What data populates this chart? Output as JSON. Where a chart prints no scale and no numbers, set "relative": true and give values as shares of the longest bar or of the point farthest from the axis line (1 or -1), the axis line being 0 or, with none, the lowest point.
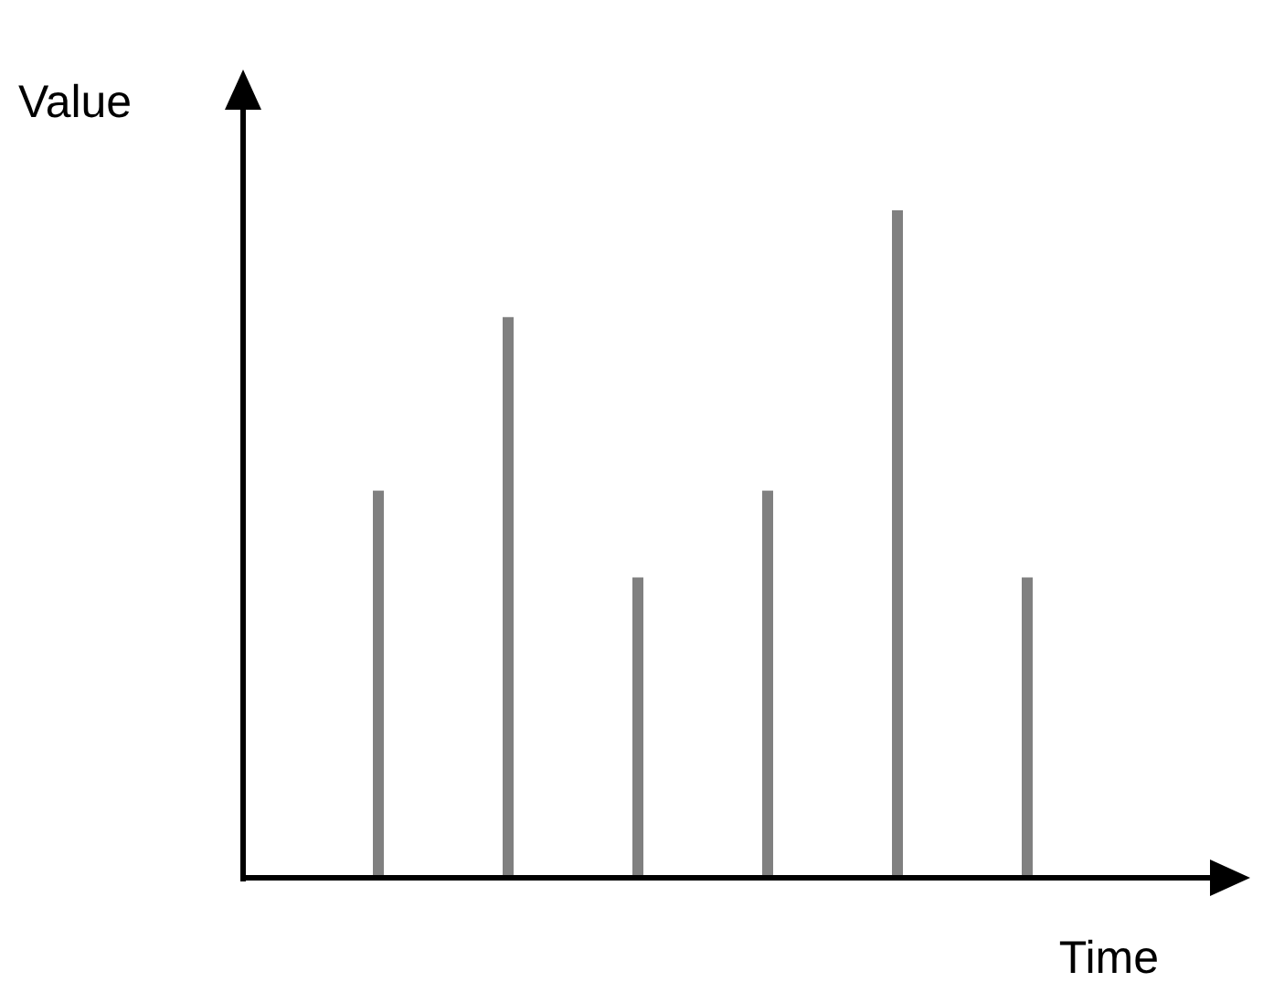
{
  "chart_data": {
    "type": "bar",
    "relative": true,
    "xlabel": "Time",
    "ylabel": "Value",
    "categories": [
      null,
      null,
      null,
      null,
      null,
      null
    ],
    "values": [
      0.58,
      0.84,
      0.45,
      0.58,
      1,
      0.45
    ],
    "color": "#808080"
  }
}
